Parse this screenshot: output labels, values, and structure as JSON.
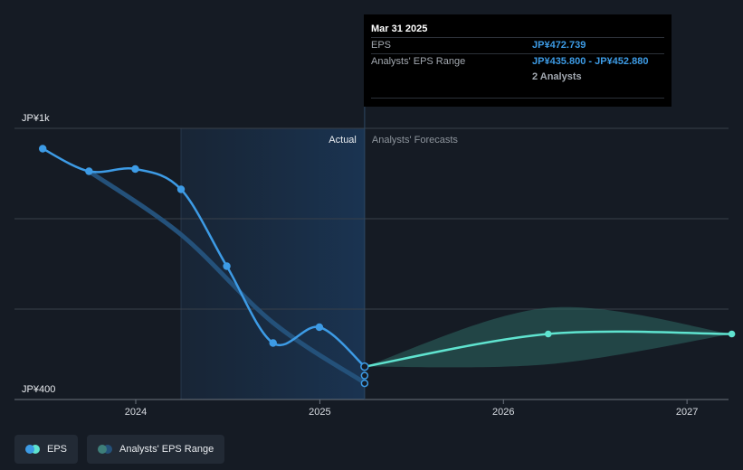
{
  "chart_data": {
    "type": "line",
    "y_axis": {
      "top_label": "JP¥1k",
      "bottom_label": "JP¥400",
      "ylim": [
        400,
        1000
      ]
    },
    "x_axis": {
      "ticks": [
        "2024",
        "2025",
        "2026",
        "2027"
      ]
    },
    "sections": {
      "actual_label": "Actual",
      "forecast_label": "Analysts' Forecasts"
    },
    "series": [
      {
        "name": "EPS",
        "color": "#3d9be5",
        "points": [
          {
            "x": "2023-06-30",
            "y": 955
          },
          {
            "x": "2023-09-30",
            "y": 905
          },
          {
            "x": "2023-12-31",
            "y": 910
          },
          {
            "x": "2024-03-31",
            "y": 865
          },
          {
            "x": "2024-06-30",
            "y": 695
          },
          {
            "x": "2024-09-30",
            "y": 525
          },
          {
            "x": "2024-12-31",
            "y": 560
          },
          {
            "x": "2025-03-31",
            "y": 472.739
          }
        ]
      },
      {
        "name": "EPS forecast",
        "color": "#5fe3cf",
        "points": [
          {
            "x": "2025-03-31",
            "y": 472.739
          },
          {
            "x": "2026-03-31",
            "y": 545
          },
          {
            "x": "2027-03-31",
            "y": 545
          }
        ]
      },
      {
        "name": "Analysts' EPS Range",
        "color": "#2e6763",
        "upper": [
          {
            "x": "2025-03-31",
            "y": 472.739
          },
          {
            "x": "2026-03-31",
            "y": 603
          },
          {
            "x": "2027-03-31",
            "y": 545
          }
        ],
        "lower": [
          {
            "x": "2025-03-31",
            "y": 472.739
          },
          {
            "x": "2026-03-31",
            "y": 478
          },
          {
            "x": "2027-03-31",
            "y": 545
          }
        ]
      }
    ],
    "trend_line": {
      "color": "#24517a",
      "points": [
        {
          "x": "2023-09-30",
          "y": 905
        },
        {
          "x": "2024-03-31",
          "y": 765
        },
        {
          "x": "2024-09-30",
          "y": 570
        },
        {
          "x": "2025-03-31",
          "y": 437
        }
      ]
    },
    "range_markers": [
      435.8,
      452.88
    ],
    "grid": true
  },
  "tooltip": {
    "date": "Mar 31 2025",
    "eps_label": "EPS",
    "eps_value": "JP¥472.739",
    "range_label": "Analysts' EPS Range",
    "range_value": "JP¥435.800 - JP¥452.880",
    "analysts_count": "2 Analysts"
  },
  "legend": {
    "eps": {
      "label": "EPS",
      "colors": [
        "#3d9be5",
        "#5fe3cf"
      ]
    },
    "range": {
      "label": "Analysts' EPS Range",
      "colors": [
        "#3e7f7a",
        "#24517a"
      ]
    }
  }
}
